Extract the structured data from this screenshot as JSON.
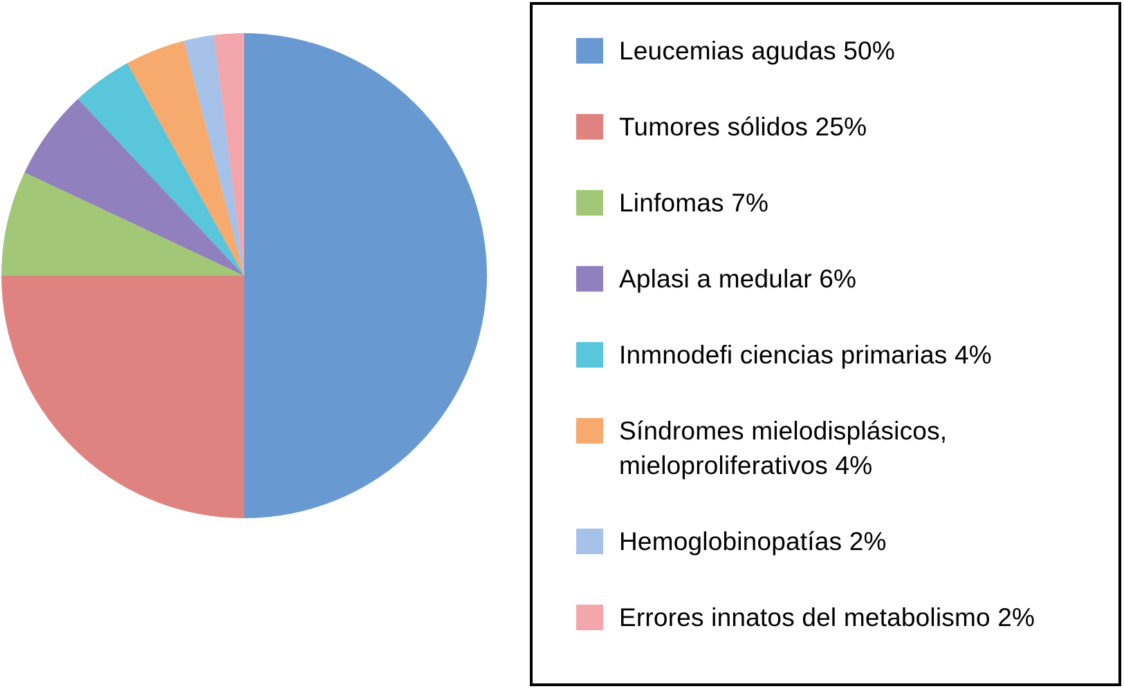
{
  "chart_data": {
    "type": "pie",
    "title": "",
    "legend_position": "right",
    "start_angle_deg": 0,
    "direction": "clockwise",
    "units": "%",
    "slices": [
      {
        "label": "Leucemias agudas",
        "value": 50,
        "color": "#6899d1"
      },
      {
        "label": "Tumores sólidos",
        "value": 25,
        "color": "#df8381"
      },
      {
        "label": "Linfomas",
        "value": 7,
        "color": "#a2c877"
      },
      {
        "label": "Aplasi a medular",
        "value": 6,
        "color": "#9080bd"
      },
      {
        "label": "Inmnodefi ciencias primarias",
        "value": 4,
        "color": "#5ac6db"
      },
      {
        "label": "Síndromes mielodisplásicos, mieloproliferativos",
        "value": 4,
        "color": "#f7aa6d"
      },
      {
        "label": "Hemoglobinopatías",
        "value": 2,
        "color": "#a6c2e8"
      },
      {
        "label": "Errores innatos del metabolismo",
        "value": 2,
        "color": "#f3a6ab"
      }
    ],
    "legend_border_color": "#000000",
    "background_color": "#ffffff"
  }
}
